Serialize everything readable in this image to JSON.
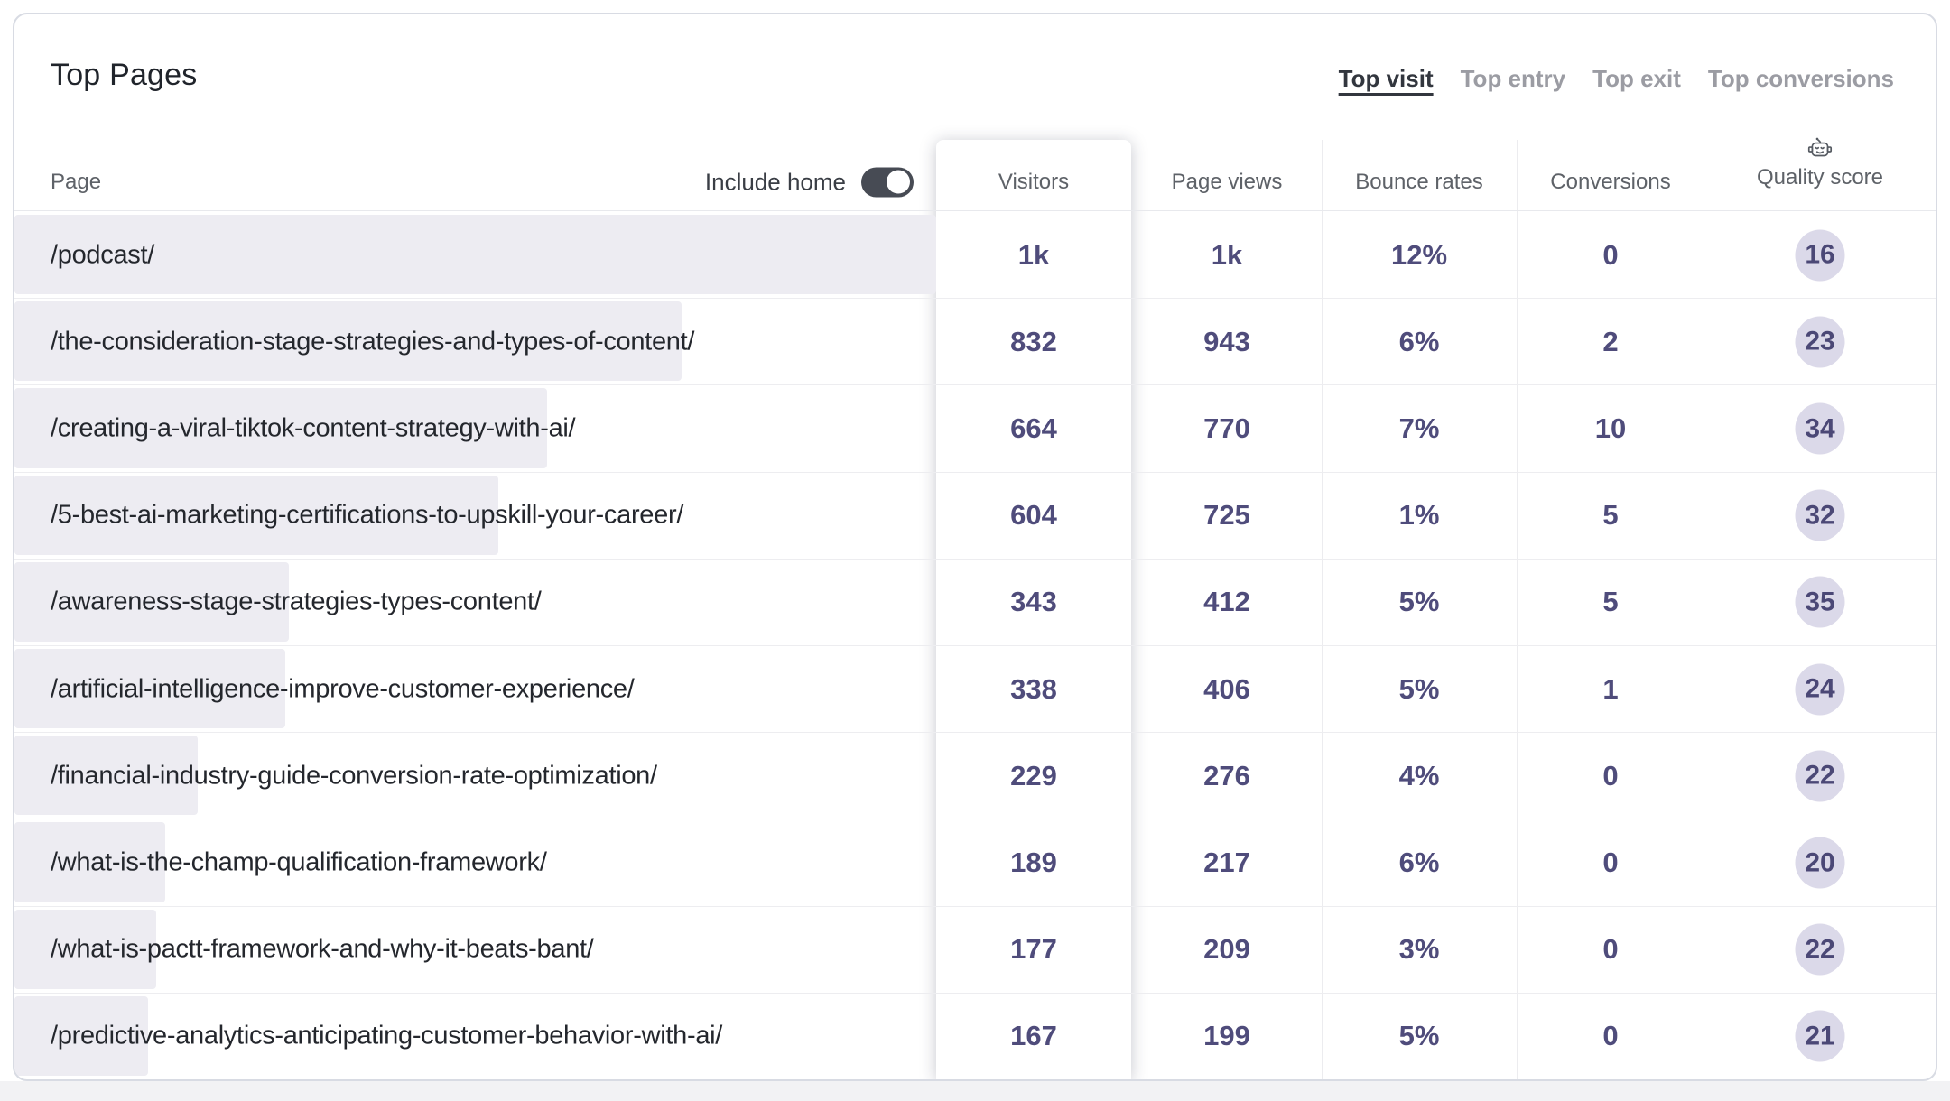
{
  "card": {
    "title": "Top Pages"
  },
  "view_tabs": [
    {
      "label": "Top visit",
      "active": true
    },
    {
      "label": "Top entry",
      "active": false
    },
    {
      "label": "Top exit",
      "active": false
    },
    {
      "label": "Top conversions",
      "active": false
    }
  ],
  "table": {
    "include_home": {
      "label": "Include home",
      "enabled": true
    },
    "columns": {
      "page": "Page",
      "visitors": "Visitors",
      "page_views": "Page views",
      "bounce_rates": "Bounce rates",
      "conversions": "Conversions",
      "quality_score": "Quality score"
    },
    "quality_icon": "robot-icon",
    "sorted_by": "Visitors",
    "rows": [
      {
        "page": "/podcast/",
        "visitors": "1k",
        "visitors_value": 1000,
        "page_views": "1k",
        "bounce_rate": "12%",
        "conversions": "0",
        "quality_score": "16",
        "highlighted": true
      },
      {
        "page": "/the-consideration-stage-strategies-and-types-of-content/",
        "visitors": "832",
        "visitors_value": 832,
        "page_views": "943",
        "bounce_rate": "6%",
        "conversions": "2",
        "quality_score": "23",
        "highlighted": false
      },
      {
        "page": "/creating-a-viral-tiktok-content-strategy-with-ai/",
        "visitors": "664",
        "visitors_value": 664,
        "page_views": "770",
        "bounce_rate": "7%",
        "conversions": "10",
        "quality_score": "34",
        "highlighted": false
      },
      {
        "page": "/5-best-ai-marketing-certifications-to-upskill-your-career/",
        "visitors": "604",
        "visitors_value": 604,
        "page_views": "725",
        "bounce_rate": "1%",
        "conversions": "5",
        "quality_score": "32",
        "highlighted": false
      },
      {
        "page": "/awareness-stage-strategies-types-content/",
        "visitors": "343",
        "visitors_value": 343,
        "page_views": "412",
        "bounce_rate": "5%",
        "conversions": "5",
        "quality_score": "35",
        "highlighted": false
      },
      {
        "page": "/artificial-intelligence-improve-customer-experience/",
        "visitors": "338",
        "visitors_value": 338,
        "page_views": "406",
        "bounce_rate": "5%",
        "conversions": "1",
        "quality_score": "24",
        "highlighted": false
      },
      {
        "page": "/financial-industry-guide-conversion-rate-optimization/",
        "visitors": "229",
        "visitors_value": 229,
        "page_views": "276",
        "bounce_rate": "4%",
        "conversions": "0",
        "quality_score": "22",
        "highlighted": false
      },
      {
        "page": "/what-is-the-champ-qualification-framework/",
        "visitors": "189",
        "visitors_value": 189,
        "page_views": "217",
        "bounce_rate": "6%",
        "conversions": "0",
        "quality_score": "20",
        "highlighted": false
      },
      {
        "page": "/what-is-pactt-framework-and-why-it-beats-bant/",
        "visitors": "177",
        "visitors_value": 177,
        "page_views": "209",
        "bounce_rate": "3%",
        "conversions": "0",
        "quality_score": "22",
        "highlighted": false
      },
      {
        "page": "/predictive-analytics-anticipating-customer-behavior-with-ai/",
        "visitors": "167",
        "visitors_value": 167,
        "page_views": "199",
        "bounce_rate": "5%",
        "conversions": "0",
        "quality_score": "21",
        "highlighted": false
      }
    ]
  },
  "colors": {
    "value_text": "#4f4c7b",
    "badge_bg": "#dbd9e9",
    "bar_bg": "#edecf2",
    "card_border": "#d8dbe3",
    "row_divider": "#ededf0",
    "header_text": "#5e6268",
    "title_text": "#20242b",
    "tab_active": "#32363e",
    "tab_inactive": "#9b9ca3",
    "toggle_on_bg": "#474b54"
  }
}
